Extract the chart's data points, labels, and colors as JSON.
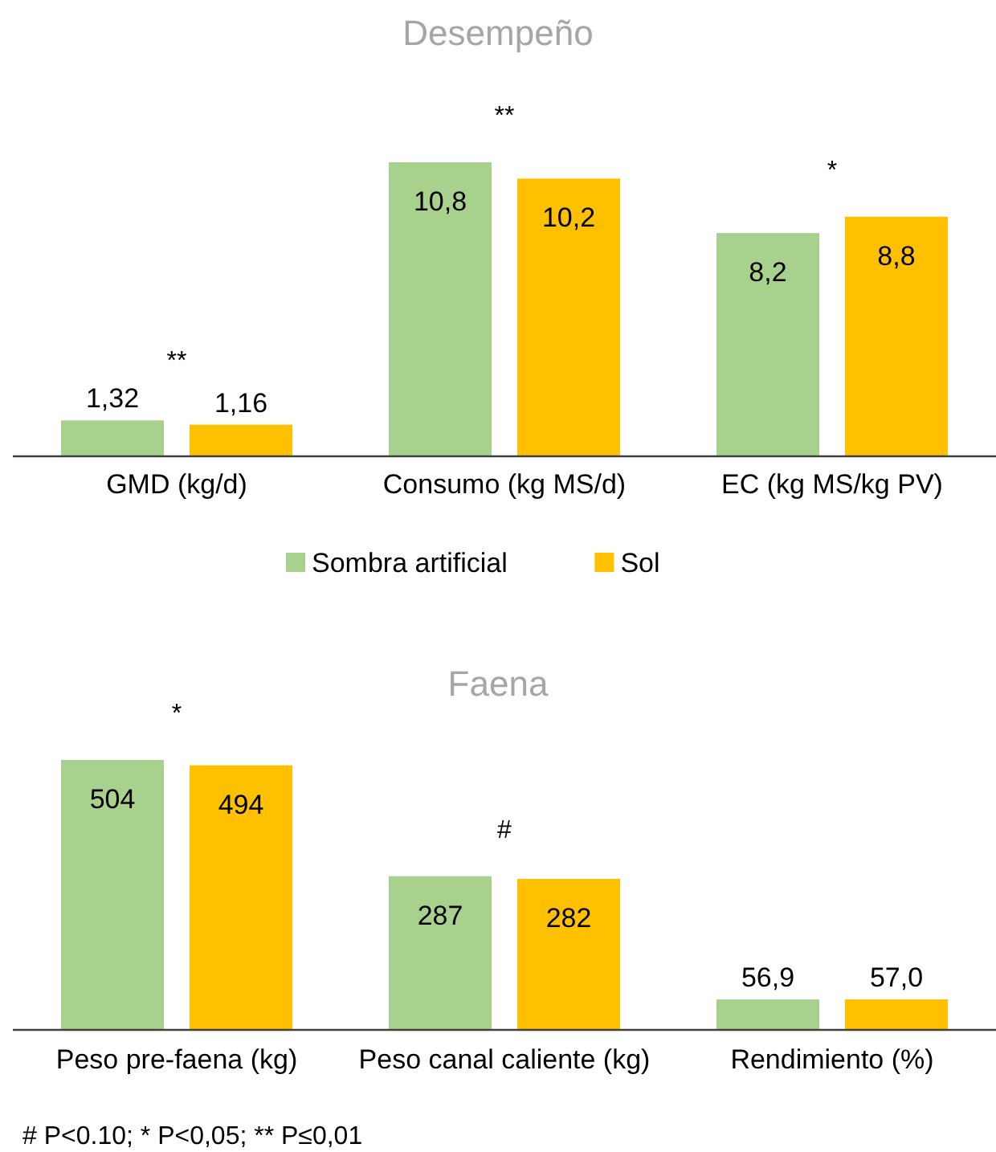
{
  "chart_data": [
    {
      "type": "bar",
      "title": "Desempeño",
      "categories": [
        "GMD (kg/d)",
        "Consumo (kg MS/d)",
        "EC (kg MS/kg PV)"
      ],
      "series": [
        {
          "name": "Sombra artificial",
          "color": "#a9d18e",
          "values": [
            1.32,
            10.8,
            8.2
          ],
          "value_labels": [
            "1,32",
            "10,8",
            "8,2"
          ]
        },
        {
          "name": "Sol",
          "color": "#ffc000",
          "values": [
            1.16,
            10.2,
            8.8
          ],
          "value_labels": [
            "1,16",
            "10,2",
            "8,8"
          ]
        }
      ],
      "annotations": [
        "**",
        "**",
        "*"
      ],
      "legend": "bottom",
      "grid": false
    },
    {
      "type": "bar",
      "title": "Faena",
      "categories": [
        "Peso pre-faena (kg)",
        "Peso canal caliente (kg)",
        "Rendimiento (%)"
      ],
      "series": [
        {
          "color": "#a9d18e",
          "values": [
            504,
            287,
            56.9
          ],
          "value_labels": [
            "504",
            "287",
            "56,9"
          ]
        },
        {
          "color": "#ffc000",
          "values": [
            494,
            282,
            57.0
          ],
          "value_labels": [
            "494",
            "282",
            "57,0"
          ]
        }
      ],
      "annotations": [
        "*",
        "#",
        "# P<0.10; * P<0,05; ** P≤0,01"
      ],
      "legend": false,
      "grid": false
    }
  ]
}
